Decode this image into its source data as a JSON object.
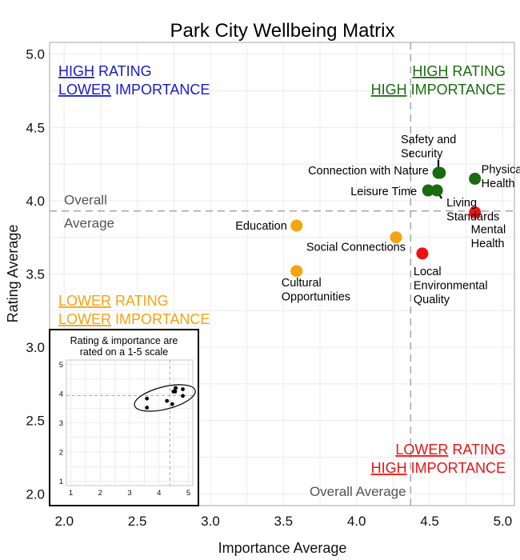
{
  "chart_data": {
    "type": "scatter",
    "title": "Park City Wellbeing Matrix",
    "xlabel": "Importance Average",
    "ylabel": "Rating Average",
    "xlim": [
      1.9,
      5.08
    ],
    "ylim": [
      1.92,
      5.08
    ],
    "xticks": [
      "2.0",
      "2.5",
      "3.0",
      "3.5",
      "4.0",
      "4.5",
      "5.0"
    ],
    "yticks": [
      "2.0",
      "2.5",
      "3.0",
      "3.5",
      "4.0",
      "4.5",
      "5.0"
    ],
    "grid": true,
    "reference_lines": {
      "x_average": 4.37,
      "y_average": 3.93,
      "y_label_line1": "Overall",
      "y_label_line2": "Average",
      "x_label": "Overall Average"
    },
    "colors": {
      "high_rating_high_importance": "#1a6b0f",
      "high_rating_lower_importance": "#1a1acc",
      "lower_rating_lower_importance": "#f5a30f",
      "lower_rating_high_importance": "#ee1111"
    },
    "points": [
      {
        "label": "Safety and Security",
        "label_lines": [
          "Safety and",
          "Security"
        ],
        "x": 4.56,
        "y": 4.19,
        "group": "high_rating_high_importance"
      },
      {
        "label": "Connection with Nature",
        "label_lines": [
          "Connection with Nature"
        ],
        "x": 4.57,
        "y": 4.19,
        "group": "high_rating_high_importance"
      },
      {
        "label": "Physical Health",
        "label_lines": [
          "Physical",
          "Health"
        ],
        "x": 4.81,
        "y": 4.15,
        "group": "high_rating_high_importance"
      },
      {
        "label": "Leisure Time",
        "label_lines": [
          "Leisure Time"
        ],
        "x": 4.49,
        "y": 4.07,
        "group": "high_rating_high_importance"
      },
      {
        "label": "Living Standards",
        "label_lines": [
          "Living",
          "Standards"
        ],
        "x": 4.55,
        "y": 4.07,
        "group": "high_rating_high_importance"
      },
      {
        "label": "Mental Health",
        "label_lines": [
          "Mental",
          "Health"
        ],
        "x": 4.81,
        "y": 3.92,
        "group": "lower_rating_high_importance"
      },
      {
        "label": "Education",
        "label_lines": [
          "Education"
        ],
        "x": 3.59,
        "y": 3.83,
        "group": "lower_rating_lower_importance"
      },
      {
        "label": "Social Connections",
        "label_lines": [
          "Social Connections"
        ],
        "x": 4.27,
        "y": 3.75,
        "group": "lower_rating_lower_importance"
      },
      {
        "label": "Local Environmental Quality",
        "label_lines": [
          "Local",
          "Environmental",
          "Quality"
        ],
        "x": 4.45,
        "y": 3.64,
        "group": "lower_rating_high_importance"
      },
      {
        "label": "Cultural Opportunities",
        "label_lines": [
          "Cultural",
          "Opportunities"
        ],
        "x": 3.59,
        "y": 3.52,
        "group": "lower_rating_lower_importance"
      }
    ],
    "quadrant_labels": {
      "top_left": {
        "line1_u": "HIGH",
        "line1_rest": " RATING",
        "line2_u": "LOWER",
        "line2_rest": " IMPORTANCE"
      },
      "top_right": {
        "line1_u": "HIGH",
        "line1_rest": " RATING",
        "line2_u": "HIGH",
        "line2_rest": " IMPORTANCE"
      },
      "bottom_left": {
        "line1_u": "LOWER",
        "line1_rest": " RATING",
        "line2_u": "LOWER",
        "line2_rest": " IMPORTANCE"
      },
      "bottom_right": {
        "line1_u": "LOWER",
        "line1_rest": " RATING",
        "line2_u": "HIGH",
        "line2_rest": " IMPORTANCE"
      }
    },
    "inset": {
      "title_line1": "Rating & importance are",
      "title_line2": "rated on a 1-5 scale",
      "xticks": [
        "1",
        "2",
        "3",
        "4",
        "5"
      ],
      "yticks": [
        "1",
        "2",
        "3",
        "4",
        "5"
      ],
      "xlim": [
        0.85,
        5.15
      ],
      "ylim": [
        0.85,
        5.15
      ]
    }
  }
}
